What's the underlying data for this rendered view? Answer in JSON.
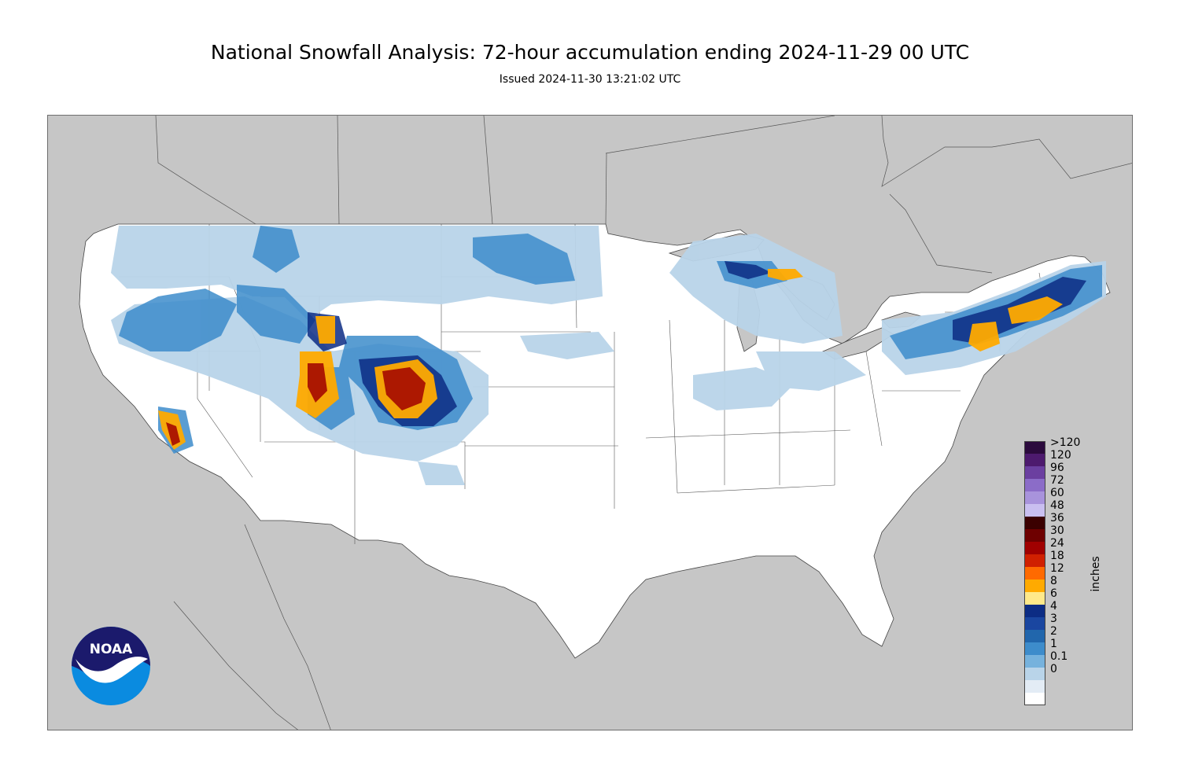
{
  "title": "National Snowfall Analysis: 72-hour accumulation ending 2024-11-29 00 UTC",
  "subtitle": "Issued 2024-11-30 13:21:02 UTC",
  "map": {
    "background_color": "#c6c6c6",
    "land_color": "#ffffff",
    "region": "CONUS"
  },
  "legend": {
    "units": "inches",
    "bins": [
      {
        "label": ">120",
        "color": "#2b0a3d"
      },
      {
        "label": "120",
        "color": "#4d1a6e"
      },
      {
        "label": "96",
        "color": "#6b3fa0"
      },
      {
        "label": "72",
        "color": "#8b6cc8"
      },
      {
        "label": "60",
        "color": "#a893dc"
      },
      {
        "label": "48",
        "color": "#c9bff0"
      },
      {
        "label": "36",
        "color": "#3b0000"
      },
      {
        "label": "30",
        "color": "#6e0000"
      },
      {
        "label": "24",
        "color": "#a00000"
      },
      {
        "label": "18",
        "color": "#d02000"
      },
      {
        "label": "12",
        "color": "#ff6a00"
      },
      {
        "label": "8",
        "color": "#ffaa00"
      },
      {
        "label": "6",
        "color": "#ffe98a"
      },
      {
        "label": "4",
        "color": "#0c2c84"
      },
      {
        "label": "3",
        "color": "#1a46a0"
      },
      {
        "label": "2",
        "color": "#2166ac"
      },
      {
        "label": "1",
        "color": "#3d8ccb"
      },
      {
        "label": "0.1",
        "color": "#76b2dd"
      },
      {
        "label": "0",
        "color": "#b9d4e9"
      },
      {
        "label": "",
        "color": "#e3ecf5"
      },
      {
        "label": "",
        "color": "#ffffff"
      }
    ]
  },
  "logo": {
    "text": "NOAA",
    "colors": {
      "dark": "#1b1a6c",
      "light": "#0a8be0"
    }
  }
}
